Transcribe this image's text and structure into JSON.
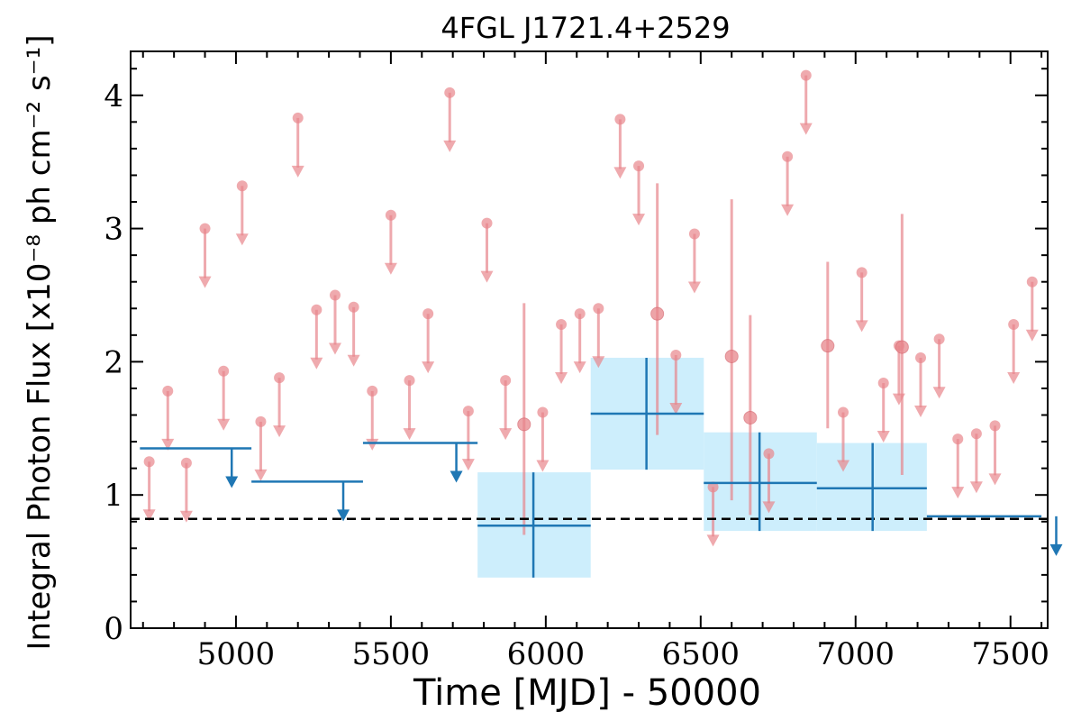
{
  "chart_data": {
    "type": "scatter",
    "title": "4FGL J1721.4+2529",
    "xlabel": "Time [MJD] - 50000",
    "ylabel": "Integral Photon Flux [x10⁻⁸ ph cm⁻² s⁻¹]",
    "xlim": [
      4660,
      7620
    ],
    "ylim": [
      0,
      4.33
    ],
    "xticks": [
      5000,
      5500,
      6000,
      6500,
      7000,
      7500
    ],
    "yticks": [
      0,
      1,
      2,
      3,
      4
    ],
    "grid": false,
    "legend": "none",
    "colors": {
      "fine": "#e8868c",
      "coarse": "#1f77b4",
      "band": "#cdeefc",
      "baseline": "#000000"
    },
    "baseline": 0.82,
    "series": [
      {
        "kind": "fine-binned upper limits",
        "points": [
          [
            4720,
            1.25
          ],
          [
            4780,
            1.78
          ],
          [
            4840,
            1.24
          ],
          [
            4900,
            3.0
          ],
          [
            4960,
            1.93
          ],
          [
            5020,
            3.32
          ],
          [
            5080,
            1.55
          ],
          [
            5140,
            1.88
          ],
          [
            5200,
            3.83
          ],
          [
            5260,
            2.39
          ],
          [
            5320,
            2.5
          ],
          [
            5380,
            2.41
          ],
          [
            5440,
            1.78
          ],
          [
            5500,
            3.1
          ],
          [
            5560,
            1.86
          ],
          [
            5620,
            2.36
          ],
          [
            5690,
            4.02
          ],
          [
            5750,
            1.63
          ],
          [
            5810,
            3.04
          ],
          [
            5870,
            1.86
          ],
          [
            5990,
            1.62
          ],
          [
            6050,
            2.28
          ],
          [
            6110,
            2.36
          ],
          [
            6170,
            2.4
          ],
          [
            6240,
            3.82
          ],
          [
            6300,
            3.47
          ],
          [
            6420,
            2.05
          ],
          [
            6480,
            2.96
          ],
          [
            6540,
            1.06
          ],
          [
            6720,
            1.31
          ],
          [
            6780,
            3.54
          ],
          [
            6840,
            4.15
          ],
          [
            6960,
            1.62
          ],
          [
            7020,
            2.67
          ],
          [
            7090,
            1.84
          ],
          [
            7140,
            2.12
          ],
          [
            7210,
            2.03
          ],
          [
            7270,
            2.17
          ],
          [
            7330,
            1.42
          ],
          [
            7390,
            1.46
          ],
          [
            7450,
            1.52
          ],
          [
            7510,
            2.28
          ],
          [
            7570,
            2.6
          ]
        ]
      },
      {
        "kind": "fine-binned detections",
        "points": [
          {
            "x": 5930,
            "y": 1.53,
            "ylo": 0.7,
            "yhi": 2.44
          },
          {
            "x": 6360,
            "y": 2.36,
            "ylo": 1.45,
            "yhi": 3.34
          },
          {
            "x": 6600,
            "y": 2.04,
            "ylo": 0.96,
            "yhi": 3.22
          },
          {
            "x": 6660,
            "y": 1.58,
            "ylo": 0.85,
            "yhi": 2.35
          },
          {
            "x": 6910,
            "y": 2.12,
            "ylo": 1.5,
            "yhi": 2.75
          },
          {
            "x": 7150,
            "y": 2.11,
            "ylo": 1.15,
            "yhi": 3.11
          }
        ]
      },
      {
        "kind": "coarse-binned upper limits",
        "points": [
          {
            "x0": 4690,
            "x1": 5050,
            "y": 1.35
          },
          {
            "x0": 5050,
            "x1": 5410,
            "y": 1.1
          },
          {
            "x0": 5410,
            "x1": 5780,
            "y": 1.39
          },
          {
            "x0": 7230,
            "x1": 7600,
            "y": 0.84
          }
        ]
      },
      {
        "kind": "coarse-binned detections",
        "points": [
          {
            "x": 5960,
            "x0": 5780,
            "x1": 6145,
            "y": 0.77,
            "ylo": 0.38,
            "yhi": 1.17
          },
          {
            "x": 6325,
            "x0": 6145,
            "x1": 6510,
            "y": 1.61,
            "ylo": 1.19,
            "yhi": 2.03
          },
          {
            "x": 6690,
            "x0": 6510,
            "x1": 6875,
            "y": 1.09,
            "ylo": 0.73,
            "yhi": 1.47
          },
          {
            "x": 7055,
            "x0": 6875,
            "x1": 7230,
            "y": 1.05,
            "ylo": 0.73,
            "yhi": 1.39
          }
        ]
      }
    ]
  }
}
